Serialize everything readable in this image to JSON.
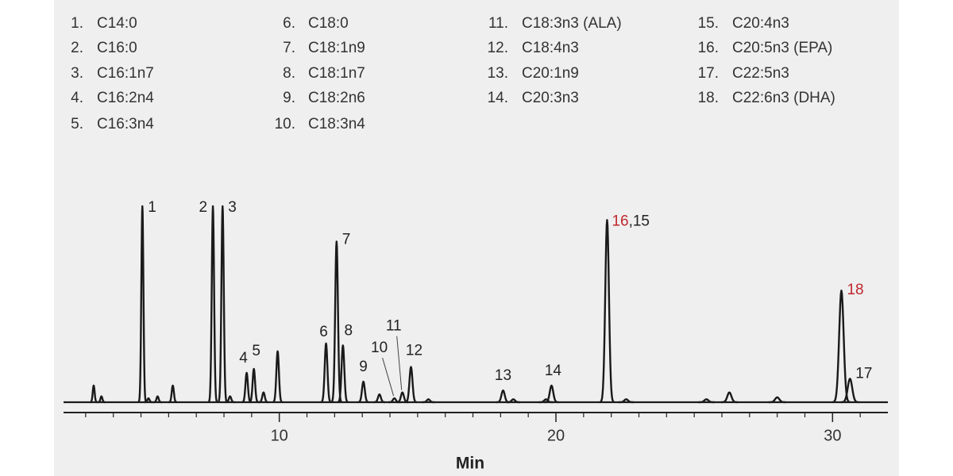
{
  "chart_data": {
    "type": "chromatogram",
    "x_label": "Min",
    "xlim": [
      2.2,
      32
    ],
    "xticks": [
      10,
      20,
      30
    ],
    "xticks_minor": [
      3,
      4,
      5,
      6,
      7,
      8,
      9,
      11,
      12,
      13,
      14,
      15,
      16,
      17,
      18,
      19,
      21,
      22,
      23,
      24,
      25,
      26,
      27,
      28,
      29,
      31
    ],
    "ylim": [
      0,
      100
    ],
    "color": "#1a1a1a",
    "x": [
      3.29,
      3.57,
      5.05,
      5.27,
      5.6,
      6.15,
      7.6,
      7.95,
      8.22,
      8.82,
      9.08,
      9.43,
      9.94,
      11.69,
      12.07,
      12.3,
      13.04,
      13.62,
      14.16,
      14.45,
      14.76,
      15.39,
      18.09,
      18.46,
      19.64,
      19.84,
      21.85,
      22.54,
      25.44,
      26.27,
      28.0,
      30.32,
      30.63
    ],
    "values": [
      8.5,
      3,
      100,
      2,
      3,
      8.5,
      100,
      100,
      3,
      15,
      17,
      5,
      26,
      30,
      82,
      29,
      10.5,
      4,
      2,
      5,
      18,
      1.5,
      6,
      1.5,
      1.5,
      8.5,
      93,
      1.5,
      1.5,
      5,
      2.5,
      57,
      12
    ],
    "labels": [
      null,
      null,
      [
        "1"
      ],
      null,
      null,
      null,
      [
        "2"
      ],
      [
        "3"
      ],
      null,
      [
        "4"
      ],
      [
        "5"
      ],
      null,
      null,
      [
        "6"
      ],
      [
        "7"
      ],
      [
        "8"
      ],
      [
        "9"
      ],
      null,
      [
        "10"
      ],
      [
        "11"
      ],
      [
        "12"
      ],
      null,
      [
        "13"
      ],
      null,
      null,
      [
        "14"
      ],
      [
        "16",
        ",15"
      ],
      null,
      null,
      null,
      null,
      [
        "18"
      ],
      [
        "17"
      ]
    ],
    "label_colors": [
      null,
      null,
      null,
      null,
      null,
      null,
      null,
      null,
      null,
      null,
      null,
      null,
      null,
      null,
      null,
      null,
      null,
      null,
      null,
      null,
      null,
      null,
      null,
      null,
      null,
      null,
      [
        "#c0272d",
        "#222222"
      ],
      null,
      null,
      null,
      null,
      [
        "#c0272d"
      ],
      null
    ],
    "compounds": [
      {
        "number": "1.",
        "name": "C14:0"
      },
      {
        "number": "2.",
        "name": "C16:0"
      },
      {
        "number": "3.",
        "name": "C16:1n7"
      },
      {
        "number": "4.",
        "name": "C16:2n4"
      },
      {
        "number": "5.",
        "name": "C16:3n4"
      },
      {
        "number": "6.",
        "name": "C18:0"
      },
      {
        "number": "7.",
        "name": "C18:1n9"
      },
      {
        "number": "8.",
        "name": "C18:1n7"
      },
      {
        "number": "9.",
        "name": "C18:2n6"
      },
      {
        "number": "10.",
        "name": "C18:3n4"
      },
      {
        "number": "11.",
        "name": "C18:3n3 (ALA)"
      },
      {
        "number": "12.",
        "name": "C18:4n3"
      },
      {
        "number": "13.",
        "name": "C20:1n9"
      },
      {
        "number": "14.",
        "name": "C20:3n3"
      },
      {
        "number": "15.",
        "name": "C20:4n3"
      },
      {
        "number": "16.",
        "name": "C20:5n3 (EPA)"
      },
      {
        "number": "17.",
        "name": "C22:5n3"
      },
      {
        "number": "18.",
        "name": "C22:6n3 (DHA)"
      }
    ]
  }
}
